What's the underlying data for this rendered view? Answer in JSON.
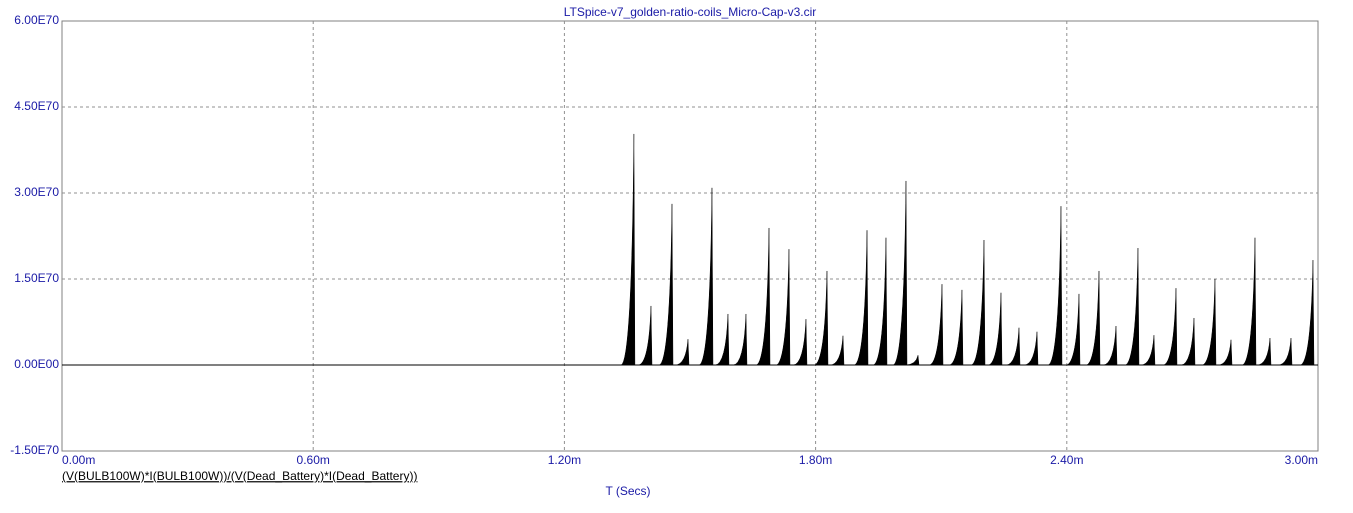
{
  "chart_data": {
    "type": "line",
    "title": "LTSpice-v7_golden-ratio-coils_Micro-Cap-v3.cir",
    "x_label": "T (Secs)",
    "x": [
      0.001366,
      0.0014068,
      0.001457,
      0.0014952,
      0.0015525,
      0.0015907,
      0.0016337,
      0.0016887,
      0.0017364,
      0.001777,
      0.0018272,
      0.0018654,
      0.0019228,
      0.0019681,
      0.0020159,
      0.0020446,
      0.0021019,
      0.0021496,
      0.0022022,
      0.0022428,
      0.0022858,
      0.0023288,
      0.0023861,
      0.0024291,
      0.0024769,
      0.0025175,
      0.00257,
      0.0026082,
      0.0026608,
      0.0027038,
      0.0027539,
      0.0027922,
      0.0028495,
      0.0028853,
      0.0029355,
      0.002988
    ],
    "series": [
      {
        "name": "(V(BULB100W)*I(BULB100W))/(V(Dead_Battery)*I(Dead_Battery))",
        "color": "#000000",
        "values": [
          4.03e+70,
          1.03e+70,
          2.81e+70,
          4.5e+69,
          3.09e+70,
          8.9e+69,
          8.9e+69,
          2.39e+70,
          2.02e+70,
          8e+69,
          1.64e+70,
          5.1e+69,
          2.35e+70,
          2.22e+70,
          3.21e+70,
          1.7e+69,
          1.41e+70,
          1.31e+70,
          2.18e+70,
          1.26e+70,
          6.5e+69,
          5.8e+69,
          2.77e+70,
          1.24e+70,
          1.64e+70,
          6.8e+69,
          2.04e+70,
          5.2e+69,
          1.34e+70,
          8.2e+69,
          1.5e+70,
          4.4e+69,
          2.22e+70,
          4.7e+69,
          4.7e+69,
          1.83e+70
        ]
      }
    ],
    "xlim": [
      0,
      0.003
    ],
    "xticks": [
      {
        "value": 0,
        "label": "0.00m"
      },
      {
        "value": 0.0006,
        "label": "0.60m"
      },
      {
        "value": 0.0012,
        "label": "1.20m"
      },
      {
        "value": 0.0018,
        "label": "1.80m"
      },
      {
        "value": 0.0024,
        "label": "2.40m"
      },
      {
        "value": 0.003,
        "label": "3.00m"
      }
    ],
    "ylim": [
      -1.5e+70,
      6e+70
    ],
    "yticks": [
      {
        "value": -1.5e+70,
        "label": "-1.50E70"
      },
      {
        "value": 0,
        "label": "0.00E00"
      },
      {
        "value": 1.5e+70,
        "label": "1.50E70"
      },
      {
        "value": 3e+70,
        "label": "3.00E70"
      },
      {
        "value": 4.5e+70,
        "label": "4.50E70"
      },
      {
        "value": 6e+70,
        "label": "6.00E70"
      }
    ],
    "grid": true
  }
}
